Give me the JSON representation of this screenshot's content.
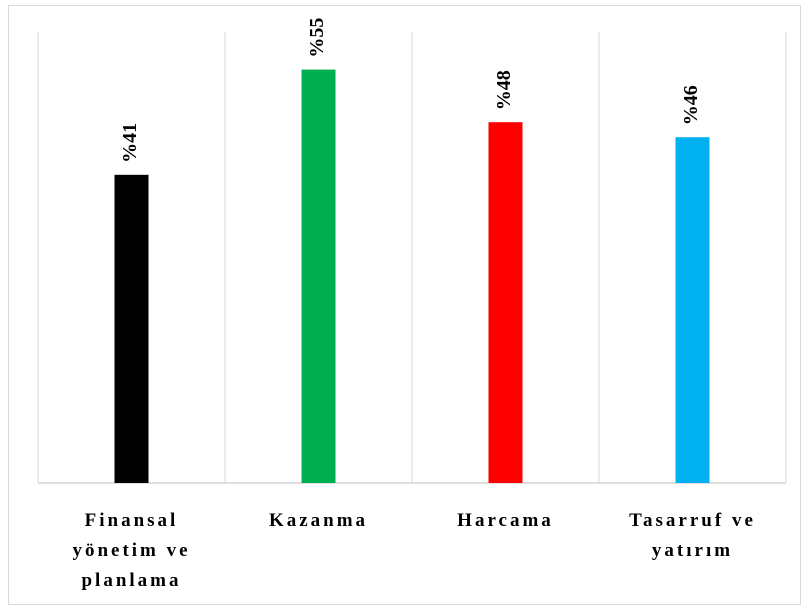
{
  "chart_data": {
    "type": "bar",
    "categories": [
      "Finansal yönetim ve planlama",
      "Kazanma",
      "Harcama",
      "Tasarruf ve yatırım"
    ],
    "values": [
      41,
      55,
      48,
      46
    ],
    "value_labels": [
      "%41",
      "%55",
      "%48",
      "%46"
    ],
    "colors": [
      "#000000",
      "#00b050",
      "#ff0000",
      "#00b0f0"
    ],
    "ylim": [
      0,
      60
    ]
  }
}
